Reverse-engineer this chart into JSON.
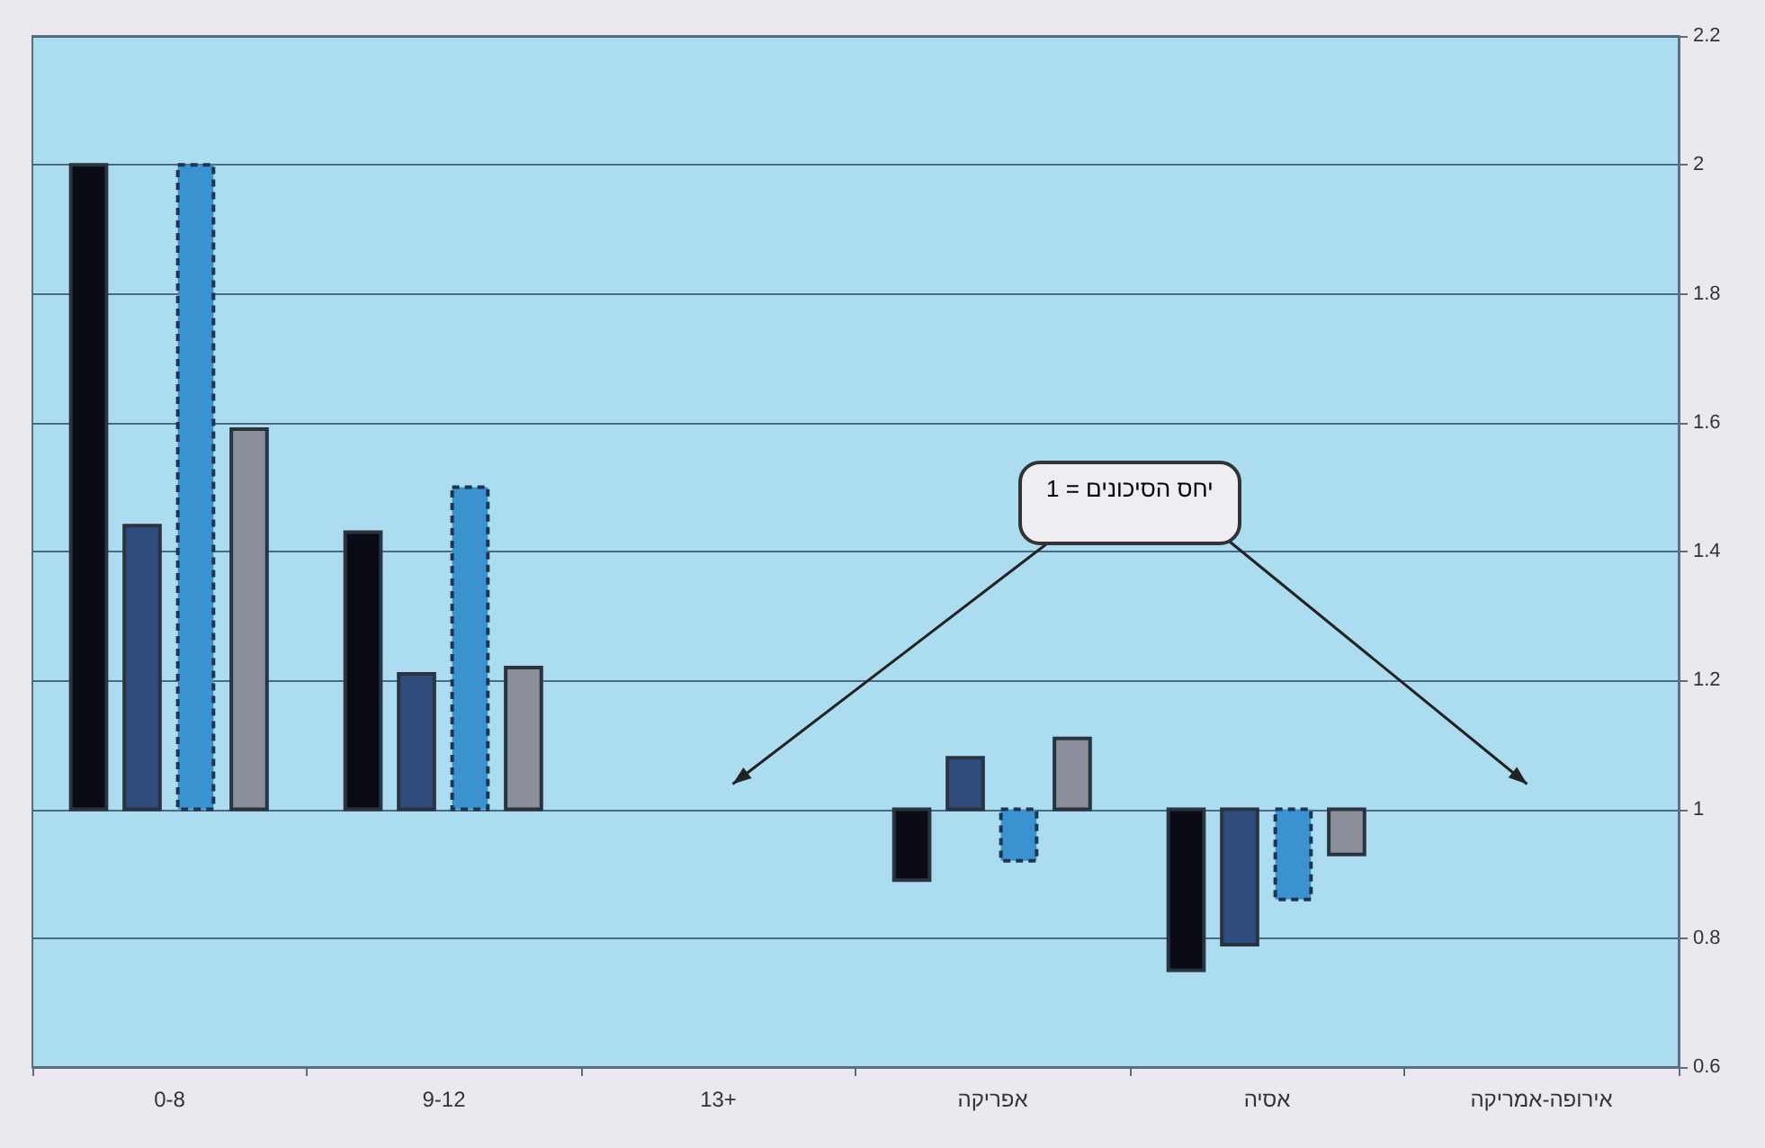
{
  "chart_data": {
    "type": "bar",
    "categories": [
      "0-8",
      "9-12",
      "13+",
      "אפריקה",
      "אסיה",
      "אירופה-אמריקה"
    ],
    "series": [
      {
        "color": "#0b0b16",
        "base": [
          1,
          1,
          null,
          1,
          1,
          null
        ],
        "values": [
          1.0,
          0.43,
          null,
          -0.11,
          -0.25,
          null
        ]
      },
      {
        "color": "#2e4c7e",
        "base": [
          1,
          1,
          null,
          1,
          1,
          null
        ],
        "values": [
          0.44,
          0.21,
          null,
          0.08,
          -0.21,
          null
        ]
      },
      {
        "color": "#3a93d0",
        "line_style": "dashed",
        "base": [
          1,
          1,
          null,
          1,
          1,
          null
        ],
        "values": [
          1.0,
          0.5,
          null,
          -0.08,
          -0.14,
          null
        ]
      },
      {
        "color": "#8a8f99",
        "base": [
          1,
          1,
          null,
          1,
          1,
          null
        ],
        "values": [
          0.59,
          0.22,
          null,
          0.11,
          -0.07,
          null
        ]
      }
    ],
    "ylim": [
      0.6,
      2.2
    ],
    "yticks": [
      0.6,
      0.8,
      1,
      1.2,
      1.4,
      1.6,
      1.8,
      2,
      2.2
    ],
    "grid": "y",
    "annotations": [
      "יחס הסיכונים = 1"
    ]
  }
}
